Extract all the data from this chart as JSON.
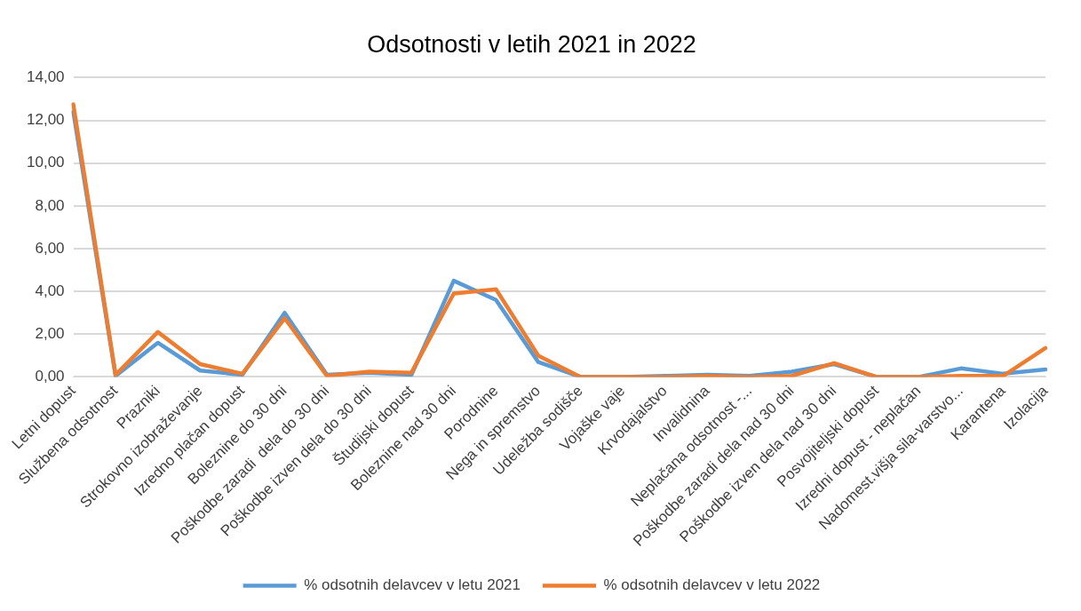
{
  "chart_data": {
    "type": "line",
    "title": "Odsotnosti v letih 2021 in 2022",
    "categories": [
      "Letni dopust",
      "Službena odsotnost",
      "Prazniki",
      "Strokovno izobraževanje",
      "Izredno plačan dopust",
      "Boleznine do 30 dni",
      "Poškodbe zaradi  dela do 30 dni",
      "Poškodbe izven dela do 30 dni",
      "Študijski dopust",
      "Boleznine nad 30 dni",
      "Porodnine",
      "Nega in spremstvo",
      "Udeležba sodišče",
      "Vojaške vaje",
      "Krvodajalstvo",
      "Invalidnina",
      "Neplačana odsotnost -...",
      "Poškodbe zaradi dela nad 30 dni",
      "Poškodbe izven dela nad 30 dni",
      "Posvojiteljski dopust",
      "Izredni dopust - neplačan",
      "Nadomest.višja sila-varstvo...",
      "Karantena",
      "Izolacija"
    ],
    "series": [
      {
        "name": "% odsotnih delavcev v letu 2021",
        "color": "#5b9bd5",
        "values": [
          12.4,
          0.05,
          1.6,
          0.3,
          0.1,
          3.0,
          0.1,
          0.2,
          0.1,
          4.5,
          3.6,
          0.7,
          0,
          0,
          0.05,
          0.1,
          0.05,
          0.25,
          0.6,
          0,
          0,
          0.4,
          0.15,
          0.35
        ]
      },
      {
        "name": "% odsotnih delavcev v letu 2022",
        "color": "#ed7d31",
        "values": [
          12.75,
          0.1,
          2.1,
          0.6,
          0.15,
          2.75,
          0.05,
          0.25,
          0.2,
          3.9,
          4.1,
          1.0,
          0,
          0,
          0,
          0.05,
          0,
          0.05,
          0.65,
          0,
          0,
          0.05,
          0.05,
          1.35
        ]
      }
    ],
    "ylim": [
      0,
      14
    ],
    "yticks": [
      {
        "value": 0,
        "label": "0,00"
      },
      {
        "value": 2,
        "label": "2,00"
      },
      {
        "value": 4,
        "label": "4,00"
      },
      {
        "value": 6,
        "label": "6,00"
      },
      {
        "value": 8,
        "label": "8,00"
      },
      {
        "value": 10,
        "label": "10,00"
      },
      {
        "value": 12,
        "label": "12,00"
      },
      {
        "value": 14,
        "label": "14,00"
      }
    ],
    "grid": "y",
    "legend": "bottom",
    "marker": "none",
    "line_style": "solid"
  }
}
